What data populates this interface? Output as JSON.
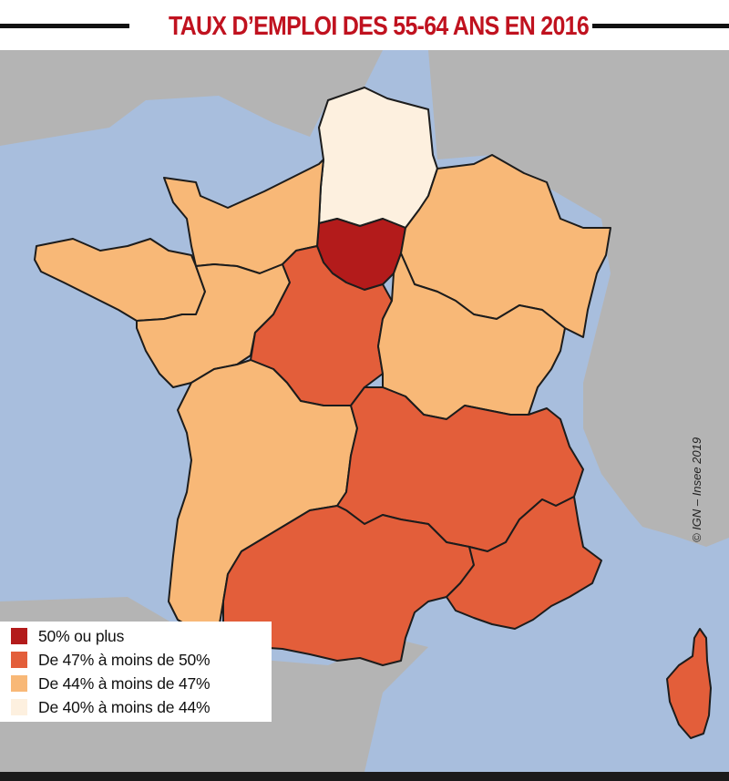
{
  "title": "TAUX D’EMPLOI DES 55-64 ANS EN 2016",
  "credit": "© IGN – Insee 2019",
  "colors": {
    "sea": "#a8bedd",
    "land_outside": "#b4b4b4",
    "border": "#1c1c1c",
    "title_red": "#c0121f"
  },
  "legend": [
    {
      "label": "50% ou plus",
      "color": "#b31b1b"
    },
    {
      "label": "De 47% à moins de 50%",
      "color": "#e35e3a"
    },
    {
      "label": "De 44% à moins de 47%",
      "color": "#f8b877"
    },
    {
      "label": "De 40% à moins de 44%",
      "color": "#fdf0df"
    }
  ],
  "regions": [
    {
      "key": "ile-de-france",
      "class": 0
    },
    {
      "key": "hauts-de-france",
      "class": 3
    },
    {
      "key": "normandie",
      "class": 2
    },
    {
      "key": "grand-est",
      "class": 2
    },
    {
      "key": "bretagne",
      "class": 2
    },
    {
      "key": "pays-de-la-loire",
      "class": 2
    },
    {
      "key": "centre-val-de-loire",
      "class": 1
    },
    {
      "key": "bourgogne-franche-comte",
      "class": 2
    },
    {
      "key": "nouvelle-aquitaine",
      "class": 2
    },
    {
      "key": "auvergne-rhone-alpes",
      "class": 1
    },
    {
      "key": "occitanie",
      "class": 1
    },
    {
      "key": "paca",
      "class": 1
    },
    {
      "key": "corse",
      "class": 1
    }
  ]
}
